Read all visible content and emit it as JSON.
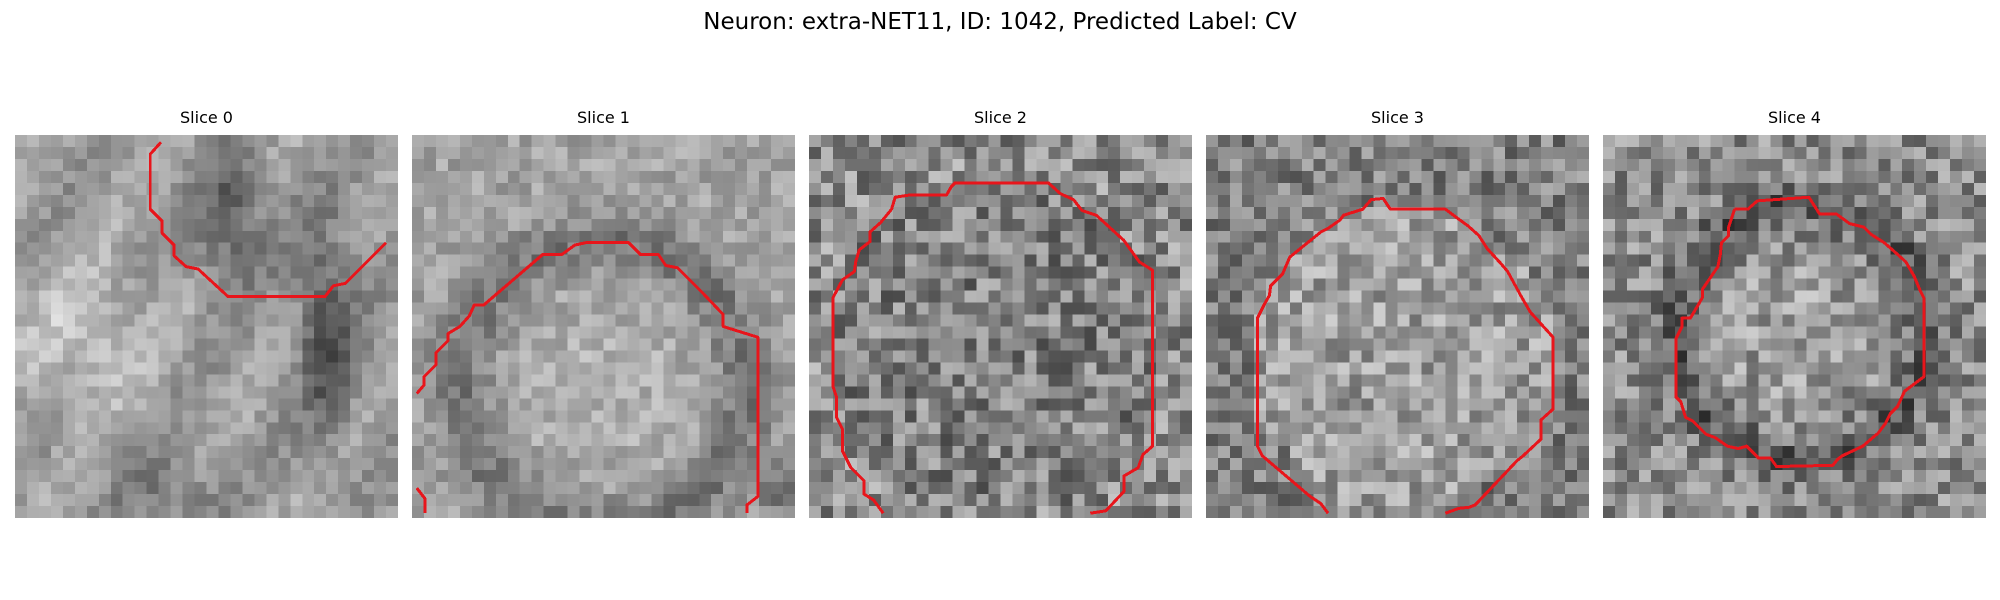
{
  "figure": {
    "title": "Neuron: extra-NET11, ID: 1042, Predicted Label: CV"
  },
  "panels": [
    {
      "title": "Slice 0"
    },
    {
      "title": "Slice 1"
    },
    {
      "title": "Slice 2"
    },
    {
      "title": "Slice 3"
    },
    {
      "title": "Slice 4"
    }
  ],
  "style": {
    "contour_color": "#e8151b",
    "colormap": "grayscale"
  }
}
